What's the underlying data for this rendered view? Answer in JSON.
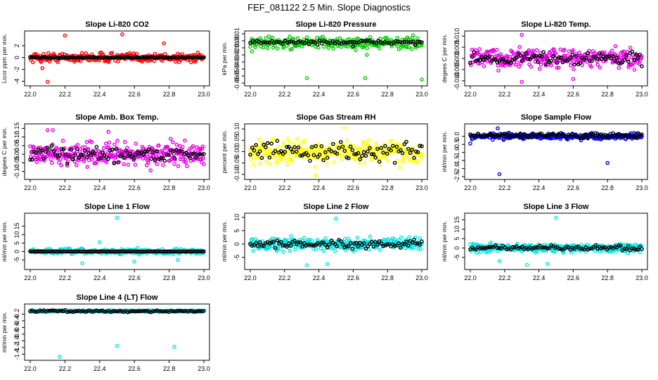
{
  "title": "FEF_081122  2.5 Min. Slope Diagnostics",
  "chart_data": [
    {
      "type": "scatter",
      "title": "Slope Li-820 CO2",
      "ylabel": "Licor ppm per min.",
      "xlim": [
        22.0,
        23.0
      ],
      "ylim": [
        -4.3,
        4.0
      ],
      "xticks": [
        "22.0",
        "22.2",
        "22.4",
        "22.6",
        "22.8",
        "23.0"
      ],
      "yticks": [
        -4,
        -2,
        0,
        2
      ],
      "ytick_labels": [
        "-4",
        "-2",
        "0",
        "2"
      ],
      "series": [
        {
          "color": "#ff0000",
          "center": 0,
          "spread": 0.55,
          "n": 260,
          "outliers": [
            [
              22.2,
              3.7
            ],
            [
              22.53,
              3.9
            ],
            [
              22.77,
              2.4
            ],
            [
              22.1,
              -4.1
            ],
            [
              22.07,
              -1.8
            ]
          ]
        },
        {
          "color": "#000000",
          "center": 0,
          "spread": 0.05,
          "n": 90,
          "outliers": []
        }
      ]
    },
    {
      "type": "scatter",
      "title": "Slope Li-820 Pressure",
      "ylabel": "kPa per min.",
      "xlim": [
        22.0,
        23.0
      ],
      "ylim": [
        -0.06,
        0.01
      ],
      "xticks": [
        "22.0",
        "22.2",
        "22.4",
        "22.6",
        "22.8",
        "23.0"
      ],
      "yticks": [
        0.01,
        0.0,
        -0.01,
        -0.02,
        -0.03,
        -0.04,
        -0.05,
        -0.06
      ],
      "ytick_labels": [
        "0.01",
        "0.00",
        "-0.01",
        "-0.02",
        "-0.03",
        "-0.04",
        "-0.05",
        "-0.06"
      ],
      "series": [
        {
          "color": "#00cc00",
          "center": -0.003,
          "spread": 0.006,
          "n": 240,
          "outliers": [
            [
              22.33,
              -0.053
            ],
            [
              22.67,
              -0.053
            ],
            [
              23.0,
              -0.055
            ],
            [
              22.01,
              -0.015
            ],
            [
              22.68,
              -0.02
            ]
          ]
        },
        {
          "color": "#000000",
          "center": -0.002,
          "spread": 0.002,
          "n": 80,
          "outliers": [
            [
              22.6,
              -0.008
            ]
          ]
        }
      ]
    },
    {
      "type": "scatter",
      "title": "Slope Li-820 Temp.",
      "ylabel": "degees C per min.",
      "xlim": [
        22.0,
        23.0
      ],
      "ylim": [
        -0.011,
        0.011
      ],
      "xticks": [
        "22.0",
        "22.2",
        "22.4",
        "22.6",
        "22.8",
        "23.0"
      ],
      "yticks": [
        -0.01,
        -0.005,
        0.0,
        0.005,
        0.01
      ],
      "ytick_labels": [
        "-0.010",
        "-0.005",
        "0.000",
        "0.005",
        "0.010"
      ],
      "series": [
        {
          "color": "#e600e6",
          "center": 0,
          "spread": 0.003,
          "n": 300,
          "outliers": [
            [
              22.3,
              0.0105
            ],
            [
              22.3,
              -0.0105
            ],
            [
              22.6,
              -0.0092
            ]
          ]
        },
        {
          "color": "#000000",
          "center": 0,
          "spread": 0.002,
          "n": 90,
          "outliers": []
        }
      ]
    },
    {
      "type": "scatter",
      "title": "Slope Amb. Box Temp.",
      "ylabel": "degees C per min.",
      "xlim": [
        22.0,
        23.0
      ],
      "ylim": [
        -0.13,
        0.16
      ],
      "xticks": [
        "22.0",
        "22.2",
        "22.4",
        "22.6",
        "22.8",
        "23.0"
      ],
      "yticks": [
        -0.1,
        -0.05,
        0.0,
        0.05,
        0.1,
        0.15
      ],
      "ytick_labels": [
        "-0.10",
        "-0.05",
        "0.00",
        "0.05",
        "0.10",
        "0.15"
      ],
      "series": [
        {
          "color": "#e600e6",
          "center": 0,
          "spread": 0.045,
          "n": 320,
          "outliers": [
            [
              22.1,
              0.14
            ],
            [
              22.13,
              0.14
            ],
            [
              22.45,
              0.13
            ]
          ]
        },
        {
          "color": "#000000",
          "center": 0,
          "spread": 0.03,
          "n": 90,
          "outliers": []
        }
      ]
    },
    {
      "type": "scatter",
      "title": "Slope Gas Stream RH",
      "ylabel": "percent per min.",
      "xlim": [
        22.0,
        23.0
      ],
      "ylim": [
        -0.11,
        0.11
      ],
      "xticks": [
        "22.0",
        "22.2",
        "22.4",
        "22.6",
        "22.8",
        "23.0"
      ],
      "yticks": [
        -0.1,
        -0.05,
        0.0,
        0.05,
        0.1
      ],
      "ytick_labels": [
        "-0.10",
        "-0.05",
        "0.00",
        "0.05",
        "0.10"
      ],
      "series": [
        {
          "color": "#ffff00",
          "center": 0,
          "spread": 0.035,
          "n": 300,
          "outliers": [
            [
              22.38,
              -0.105
            ],
            [
              22.55,
              0.105
            ]
          ]
        },
        {
          "color": "#000000",
          "center": 0,
          "spread": 0.03,
          "n": 90,
          "outliers": []
        }
      ]
    },
    {
      "type": "scatter",
      "title": "Slope Sample Flow",
      "ylabel": "ml/min per min.",
      "xlim": [
        22.0,
        23.0
      ],
      "ylim": [
        -2.5,
        0.6
      ],
      "xticks": [
        "22.0",
        "22.2",
        "22.4",
        "22.6",
        "22.8",
        "23.0"
      ],
      "yticks": [
        0.0,
        -0.5,
        -1.0,
        -1.5,
        -2.0,
        -2.5
      ],
      "ytick_labels": [
        "0.0",
        "-0.5",
        "-1.0",
        "-1.5",
        "-2.0",
        "-2.5"
      ],
      "series": [
        {
          "color": "#0000dd",
          "center": 0,
          "spread": 0.12,
          "n": 300,
          "outliers": [
            [
              22.17,
              -2.35
            ],
            [
              22.8,
              -1.65
            ],
            [
              22.16,
              0.5
            ],
            [
              22.0,
              -0.45
            ]
          ]
        },
        {
          "color": "#000000",
          "center": 0.05,
          "spread": 0.12,
          "n": 90,
          "outliers": []
        }
      ]
    },
    {
      "type": "scatter",
      "title": "Slope Line 1 Flow",
      "ylabel": "ml/min per min.",
      "xlim": [
        22.0,
        23.0
      ],
      "ylim": [
        -9,
        21
      ],
      "xticks": [
        "22.0",
        "22.2",
        "22.4",
        "22.6",
        "22.8",
        "23.0"
      ],
      "yticks": [
        -5,
        0,
        5,
        10,
        15
      ],
      "ytick_labels": [
        "-5",
        "0",
        "5",
        "10",
        "15"
      ],
      "series": [
        {
          "color": "#00e5e5",
          "center": 0,
          "spread": 1.1,
          "n": 260,
          "outliers": [
            [
              22.5,
              20
            ],
            [
              22.3,
              -7
            ],
            [
              22.6,
              -6
            ],
            [
              22.85,
              -5
            ],
            [
              22.4,
              5.5
            ]
          ]
        },
        {
          "color": "#000000",
          "center": 0,
          "spread": 0.05,
          "n": 120,
          "outliers": []
        }
      ]
    },
    {
      "type": "scatter",
      "title": "Slope Line 2 Flow",
      "ylabel": "ml/min per min.",
      "xlim": [
        22.0,
        23.0
      ],
      "ylim": [
        -8.5,
        10.5
      ],
      "xticks": [
        "22.0",
        "22.2",
        "22.4",
        "22.6",
        "22.8",
        "23.0"
      ],
      "yticks": [
        -5,
        0,
        5,
        10
      ],
      "ytick_labels": [
        "-5",
        "0",
        "5",
        "10"
      ],
      "series": [
        {
          "color": "#00e5e5",
          "center": 0,
          "spread": 1.6,
          "n": 300,
          "outliers": [
            [
              22.5,
              9.5
            ],
            [
              22.45,
              -7.5
            ],
            [
              22.33,
              -8
            ]
          ]
        },
        {
          "color": "#000000",
          "center": 0,
          "spread": 1.0,
          "n": 90,
          "outliers": []
        }
      ]
    },
    {
      "type": "scatter",
      "title": "Slope Line 3 Flow",
      "ylabel": "ml/min per min.",
      "xlim": [
        22.0,
        23.0
      ],
      "ylim": [
        -10,
        17
      ],
      "xticks": [
        "22.0",
        "22.2",
        "22.4",
        "22.6",
        "22.8",
        "23.0"
      ],
      "yticks": [
        -5,
        0,
        5,
        10,
        15
      ],
      "ytick_labels": [
        "-5",
        "0",
        "5",
        "10",
        "15"
      ],
      "series": [
        {
          "color": "#00e5e5",
          "center": 0,
          "spread": 1.5,
          "n": 300,
          "outliers": [
            [
              22.5,
              16
            ],
            [
              22.33,
              -9
            ],
            [
              22.45,
              -8.5
            ],
            [
              22.17,
              -7
            ]
          ]
        },
        {
          "color": "#000000",
          "center": 0,
          "spread": 0.9,
          "n": 90,
          "outliers": []
        }
      ]
    },
    {
      "type": "scatter",
      "title": "Slope Line 4 (LT) Flow",
      "ylabel": "ml/min per min.",
      "xlim": [
        22.0,
        23.0
      ],
      "ylim": [
        -1.5,
        0.02
      ],
      "xticks": [
        "22.0",
        "22.2",
        "22.4",
        "22.6",
        "22.8",
        "23.0"
      ],
      "yticks": [
        -0.2,
        -0.4,
        -0.6,
        -0.8,
        -1.0,
        -1.2,
        -1.4
      ],
      "ytick_labels": [
        "-0.2",
        "-0.4",
        "-0.6",
        "-0.8",
        "-1.0",
        "-1.2",
        "-1.4"
      ],
      "series": [
        {
          "color": "#00e5e5",
          "center": -0.11,
          "spread": 0.015,
          "n": 300,
          "outliers": [
            [
              22.5,
              -1.15
            ],
            [
              22.83,
              -1.18
            ],
            [
              22.17,
              -1.48
            ]
          ]
        },
        {
          "color": "#000000",
          "center": -0.11,
          "spread": 0.02,
          "n": 90,
          "outliers": []
        }
      ]
    }
  ]
}
